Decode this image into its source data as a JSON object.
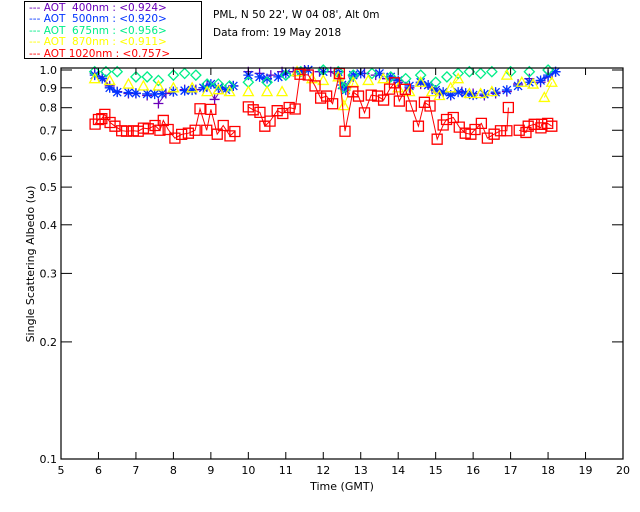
{
  "header": {
    "location": "PML, N 50 22', W 04 08', Alt 0m",
    "date": "Data from: 19 May 2018"
  },
  "chart_data": {
    "type": "scatter",
    "title": "",
    "xlabel": "Time (GMT)",
    "ylabel": "Single Scattering Albedo (ω)",
    "xlim": [
      5,
      20
    ],
    "ylim": [
      0.1,
      1.0
    ],
    "yscale": "log",
    "xticks": [
      "5",
      "6",
      "7",
      "8",
      "9",
      "10",
      "11",
      "12",
      "13",
      "14",
      "15",
      "16",
      "17",
      "18",
      "19",
      "20"
    ],
    "yticks": [
      "1.0",
      "0.9",
      "0.8",
      "0.7",
      "0.6",
      "0.5",
      "0.4",
      "0.3",
      "0.2",
      "0.1"
    ],
    "grid": false,
    "legend_position": "top-left, outside plot",
    "legend": [
      {
        "label": "--- AOT  400nm : <0.924>",
        "color": "#6a00b8"
      },
      {
        "label": "--- AOT  500nm : <0.920>",
        "color": "#0033ff"
      },
      {
        "label": "--- AOT  675nm : <0.956>",
        "color": "#00ee88"
      },
      {
        "label": "--- AOT  870nm : <0.911>",
        "color": "#ffff00"
      },
      {
        "label": "--- AOT 1020nm : <0.757>",
        "color": "#ff0000"
      }
    ],
    "series": [
      {
        "name": "AOT 400nm",
        "color": "#6a00b8",
        "marker": "plus",
        "x": [
          5.9,
          6.1,
          6.3,
          6.5,
          6.8,
          7.0,
          7.3,
          7.6,
          7.8,
          8.0,
          8.3,
          8.6,
          8.9,
          9.1,
          9.3,
          9.6,
          10.0,
          10.3,
          10.6,
          10.9,
          11.2,
          11.5,
          11.9,
          12.2,
          12.45,
          12.6,
          12.8,
          13.1,
          13.4,
          13.7,
          14.0,
          14.3,
          14.6,
          14.9,
          15.1,
          15.4,
          15.7,
          16.0,
          16.3,
          16.6,
          16.9,
          17.2,
          17.5,
          17.8,
          18.0,
          18.2
        ],
        "y": [
          0.98,
          0.96,
          0.91,
          0.88,
          0.87,
          0.87,
          0.86,
          0.82,
          0.87,
          0.88,
          0.89,
          0.89,
          0.91,
          0.84,
          0.9,
          0.91,
          0.99,
          0.98,
          0.97,
          0.99,
          0.99,
          1.0,
          0.99,
          0.99,
          0.95,
          0.9,
          0.96,
          0.98,
          0.97,
          0.95,
          0.93,
          0.9,
          0.92,
          0.9,
          0.87,
          0.86,
          0.88,
          0.87,
          0.86,
          0.87,
          0.88,
          0.92,
          0.95,
          0.93,
          0.96,
          0.99
        ]
      },
      {
        "name": "AOT 500nm",
        "color": "#0033ff",
        "marker": "asterisk",
        "x": [
          5.9,
          6.1,
          6.3,
          6.5,
          6.8,
          7.0,
          7.3,
          7.5,
          7.7,
          8.0,
          8.3,
          8.5,
          8.8,
          9.0,
          9.2,
          9.4,
          9.6,
          10.0,
          10.3,
          10.5,
          10.8,
          11.0,
          11.4,
          11.6,
          12.0,
          12.4,
          12.5,
          12.6,
          12.8,
          13.0,
          13.5,
          13.8,
          14.0,
          14.3,
          14.6,
          14.8,
          15.0,
          15.2,
          15.4,
          15.6,
          15.8,
          16.0,
          16.3,
          16.6,
          16.9,
          17.2,
          17.5,
          17.8,
          18.0,
          18.2
        ],
        "y": [
          0.97,
          0.95,
          0.9,
          0.877,
          0.875,
          0.872,
          0.868,
          0.867,
          0.87,
          0.88,
          0.885,
          0.888,
          0.9,
          0.92,
          0.9,
          0.89,
          0.91,
          0.97,
          0.96,
          0.95,
          0.96,
          0.98,
          0.99,
          1.0,
          0.99,
          0.99,
          0.915,
          0.888,
          0.97,
          0.98,
          0.98,
          0.96,
          0.94,
          0.91,
          0.93,
          0.915,
          0.888,
          0.877,
          0.862,
          0.877,
          0.872,
          0.862,
          0.867,
          0.877,
          0.888,
          0.91,
          0.93,
          0.94,
          0.97,
          0.99
        ]
      },
      {
        "name": "AOT 675nm",
        "color": "#00ee88",
        "marker": "diamond",
        "x": [
          5.9,
          6.2,
          6.5,
          7.0,
          7.3,
          7.6,
          8.0,
          8.3,
          8.6,
          8.9,
          9.2,
          9.5,
          10.0,
          10.5,
          11.0,
          11.4,
          12.0,
          12.4,
          12.55,
          12.8,
          13.3,
          13.8,
          14.2,
          14.6,
          15.0,
          15.3,
          15.6,
          15.9,
          16.2,
          16.5,
          17.0,
          17.5,
          18.0
        ],
        "y": [
          0.99,
          0.99,
          0.99,
          0.96,
          0.96,
          0.94,
          0.97,
          0.98,
          0.97,
          0.92,
          0.92,
          0.91,
          0.93,
          0.93,
          0.97,
          0.99,
          1.0,
          0.99,
          0.9,
          0.97,
          0.98,
          0.96,
          0.95,
          0.97,
          0.93,
          0.96,
          0.98,
          0.99,
          0.98,
          0.99,
          0.99,
          0.99,
          1.0
        ]
      },
      {
        "name": "AOT 870nm",
        "color": "#ffff00",
        "marker": "triangle",
        "x": [
          5.9,
          6.3,
          6.8,
          7.2,
          7.6,
          8.0,
          8.5,
          8.9,
          9.2,
          9.5,
          10.0,
          10.5,
          10.9,
          11.3,
          11.7,
          12.0,
          12.4,
          12.55,
          12.8,
          13.2,
          13.6,
          14.0,
          14.3,
          14.6,
          14.9,
          15.1,
          15.4,
          15.6,
          15.9,
          16.2,
          16.5,
          16.9,
          17.3,
          17.6,
          17.9,
          18.1
        ],
        "y": [
          0.95,
          0.94,
          0.92,
          0.91,
          0.91,
          0.9,
          0.9,
          0.88,
          0.89,
          0.88,
          0.88,
          0.88,
          0.88,
          0.99,
          0.95,
          0.94,
          0.96,
          0.81,
          0.93,
          0.94,
          0.95,
          0.9,
          0.88,
          0.93,
          0.88,
          0.86,
          0.9,
          0.95,
          0.87,
          0.87,
          0.88,
          0.97,
          0.93,
          0.92,
          0.85,
          0.93
        ]
      },
      {
        "name": "AOT 1020nm",
        "color": "#ff0000",
        "marker": "square",
        "x": [
          5.91,
          6.0,
          6.09,
          6.17,
          6.31,
          6.44,
          6.62,
          6.75,
          6.93,
          7.06,
          7.2,
          7.33,
          7.51,
          7.64,
          7.73,
          7.86,
          8.04,
          8.22,
          8.4,
          8.58,
          8.71,
          8.89,
          9.0,
          9.17,
          9.33,
          9.51,
          9.64,
          10.0,
          10.13,
          10.31,
          10.44,
          10.58,
          10.77,
          10.92,
          11.09,
          11.25,
          11.38,
          11.6,
          11.78,
          11.93,
          12.09,
          12.25,
          12.43,
          12.58,
          12.79,
          12.94,
          13.1,
          13.28,
          13.45,
          13.61,
          13.77,
          13.9,
          14.03,
          14.19,
          14.35,
          14.54,
          14.7,
          14.85,
          15.04,
          15.2,
          15.29,
          15.47,
          15.63,
          15.79,
          15.94,
          16.05,
          16.22,
          16.38,
          16.56,
          16.73,
          16.9,
          16.94,
          17.23,
          17.41,
          17.47,
          17.63,
          17.81,
          17.83,
          17.99,
          18.1
        ],
        "y": [
          0.726,
          0.746,
          0.75,
          0.769,
          0.733,
          0.717,
          0.698,
          0.696,
          0.698,
          0.696,
          0.709,
          0.706,
          0.72,
          0.7,
          0.742,
          0.703,
          0.668,
          0.683,
          0.688,
          0.7,
          0.795,
          0.7,
          0.792,
          0.684,
          0.72,
          0.677,
          0.695,
          0.804,
          0.79,
          0.778,
          0.717,
          0.739,
          0.786,
          0.773,
          0.801,
          0.794,
          0.975,
          0.971,
          0.91,
          0.847,
          0.857,
          0.819,
          0.98,
          0.696,
          0.879,
          0.857,
          0.776,
          0.862,
          0.857,
          0.837,
          0.893,
          0.927,
          0.832,
          0.892,
          0.808,
          0.717,
          0.826,
          0.808,
          0.664,
          0.722,
          0.746,
          0.755,
          0.713,
          0.688,
          0.684,
          0.703,
          0.729,
          0.668,
          0.684,
          0.698,
          0.698,
          0.801,
          0.7,
          0.691,
          0.717,
          0.725,
          0.71,
          0.725,
          0.729,
          0.717
        ]
      }
    ]
  }
}
